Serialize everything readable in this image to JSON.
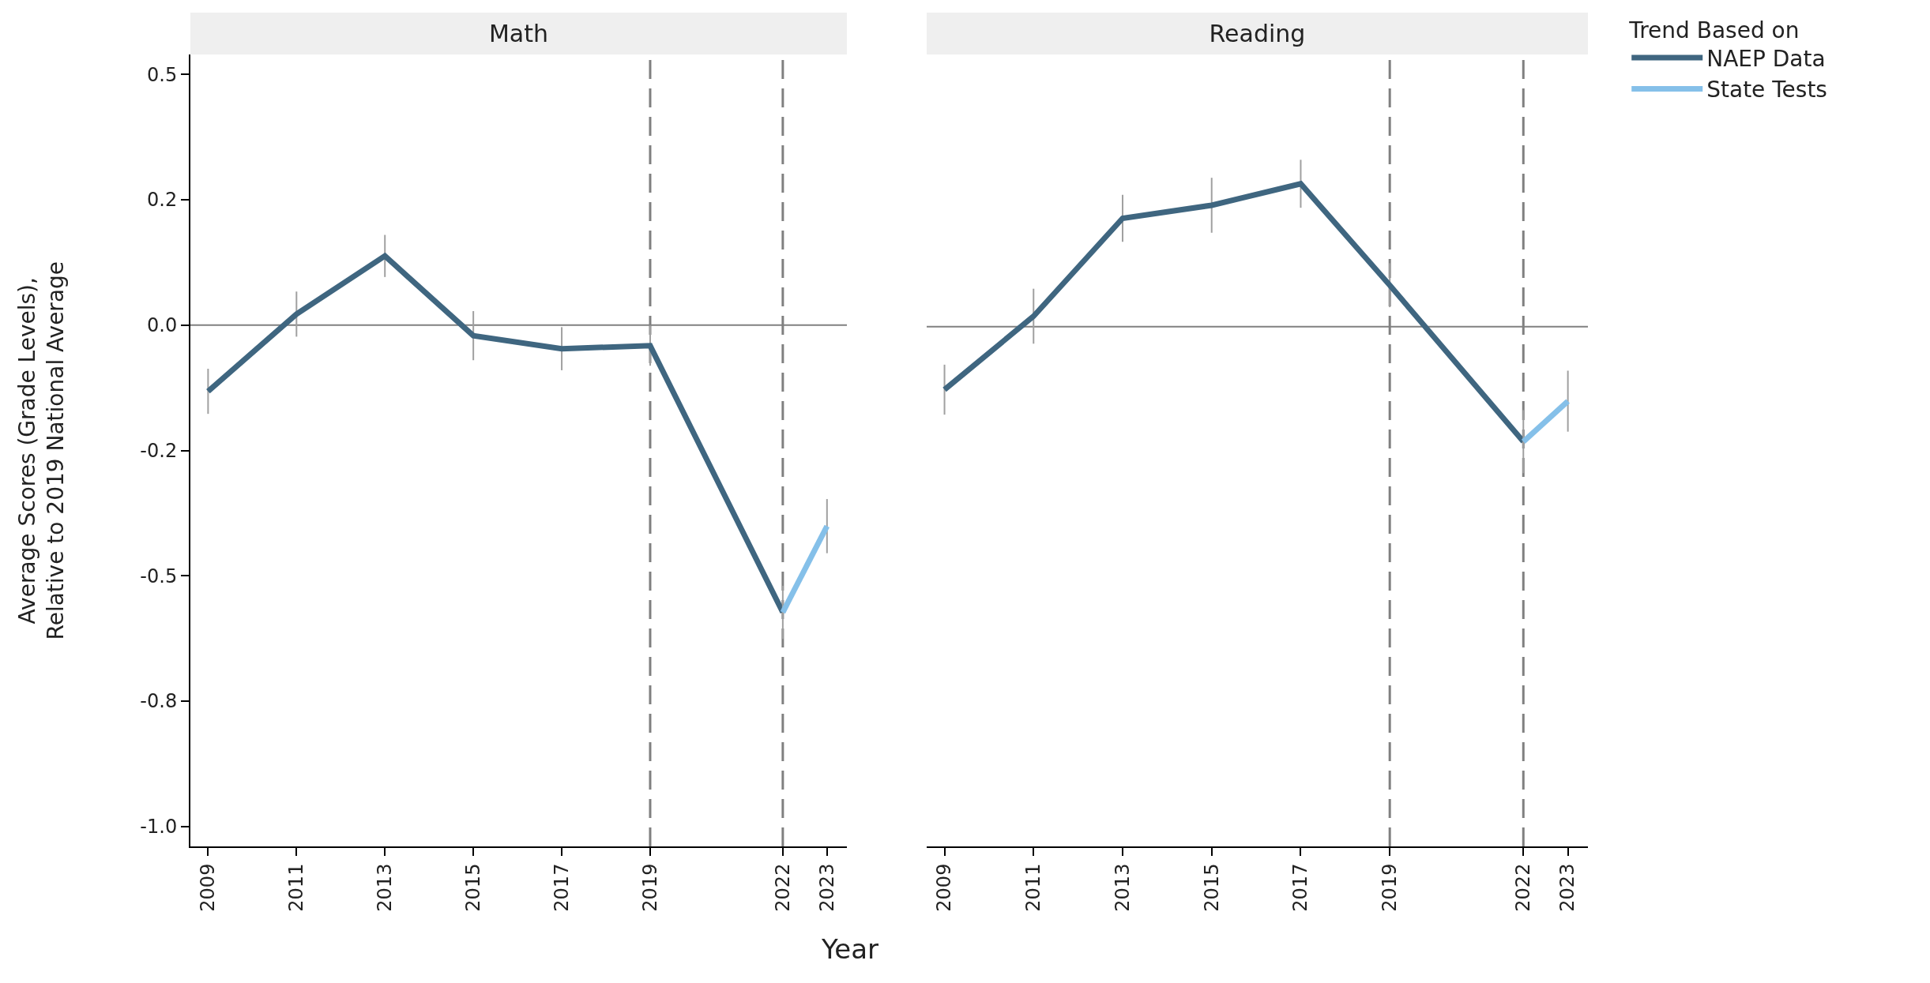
{
  "chart_data": [
    {
      "type": "line",
      "title": "Math",
      "xlabel": "Year",
      "ylabel": "Average Scores (Grade Levels),\nRelative to 2019 National Average",
      "x": [
        2009,
        2011,
        2013,
        2015,
        2017,
        2019,
        2022,
        2023
      ],
      "series": [
        {
          "color": "#3f6680",
          "values": [
            -0.132,
            0.022,
            0.138,
            -0.021,
            -0.047,
            -0.041,
            -0.573,
            null
          ],
          "errors": [
            0.045,
            0.045,
            0.042,
            0.049,
            0.043,
            0.04,
            null,
            null
          ]
        },
        {
          "color": "#85c0e9",
          "values": [
            null,
            null,
            null,
            null,
            null,
            null,
            -0.573,
            -0.401
          ],
          "errors": [
            null,
            null,
            null,
            null,
            null,
            null,
            0.053,
            0.054
          ]
        }
      ],
      "xlim": [
        2008.6,
        2023.45
      ],
      "xticks": [
        2009,
        2011,
        2013,
        2015,
        2017,
        2019,
        2022,
        2023
      ],
      "ylim": [
        -1.04,
        0.54
      ],
      "yticks": [
        {
          "value": -1,
          "label": "-1.0"
        },
        {
          "value": -0.75,
          "label": "-0.8"
        },
        {
          "value": -0.5,
          "label": "-0.5"
        },
        {
          "value": -0.25,
          "label": "-0.2"
        },
        {
          "value": 0,
          "label": "0.0"
        },
        {
          "value": 0.25,
          "label": "0.2"
        },
        {
          "value": 0.5,
          "label": "0.5"
        }
      ],
      "ref_lines": [
        {
          "axis": "y",
          "value": 0,
          "color": "#808080",
          "line_style": "solid"
        },
        {
          "axis": "x",
          "value": 2019,
          "color": "#808080",
          "line_style": "dashed"
        },
        {
          "axis": "x",
          "value": 2022,
          "color": "#808080",
          "line_style": "dashed"
        }
      ],
      "grid": false
    },
    {
      "type": "line",
      "title": "Reading",
      "legend_title": "Trend Based on",
      "x": [
        2009,
        2011,
        2013,
        2015,
        2017,
        2019,
        2022,
        2023
      ],
      "series": [
        {
          "name": "NAEP Data",
          "color": "#3f6680",
          "values": [
            -0.126,
            0.021,
            0.217,
            0.243,
            0.286,
            0.083,
            -0.23,
            null
          ],
          "errors": [
            0.05,
            0.055,
            0.047,
            0.055,
            0.048,
            0.044,
            null,
            null
          ]
        },
        {
          "name": "State Tests",
          "color": "#85c0e9",
          "values": [
            null,
            null,
            null,
            null,
            null,
            null,
            -0.23,
            -0.149
          ],
          "errors": [
            null,
            null,
            null,
            null,
            null,
            null,
            0.063,
            0.061
          ]
        }
      ],
      "xlim": [
        2008.6,
        2023.45
      ],
      "xticks": [
        2009,
        2011,
        2013,
        2015,
        2017,
        2019,
        2022,
        2023
      ],
      "ylim": [
        -1.04,
        0.54
      ],
      "tick_labels": "x",
      "ref_lines": [
        {
          "axis": "y",
          "value": 0,
          "color": "#808080",
          "line_style": "solid"
        },
        {
          "axis": "x",
          "value": 2019,
          "color": "#808080",
          "line_style": "dashed"
        },
        {
          "axis": "x",
          "value": 2022,
          "color": "#808080",
          "line_style": "dashed"
        }
      ],
      "grid": false,
      "legend": "right"
    }
  ]
}
